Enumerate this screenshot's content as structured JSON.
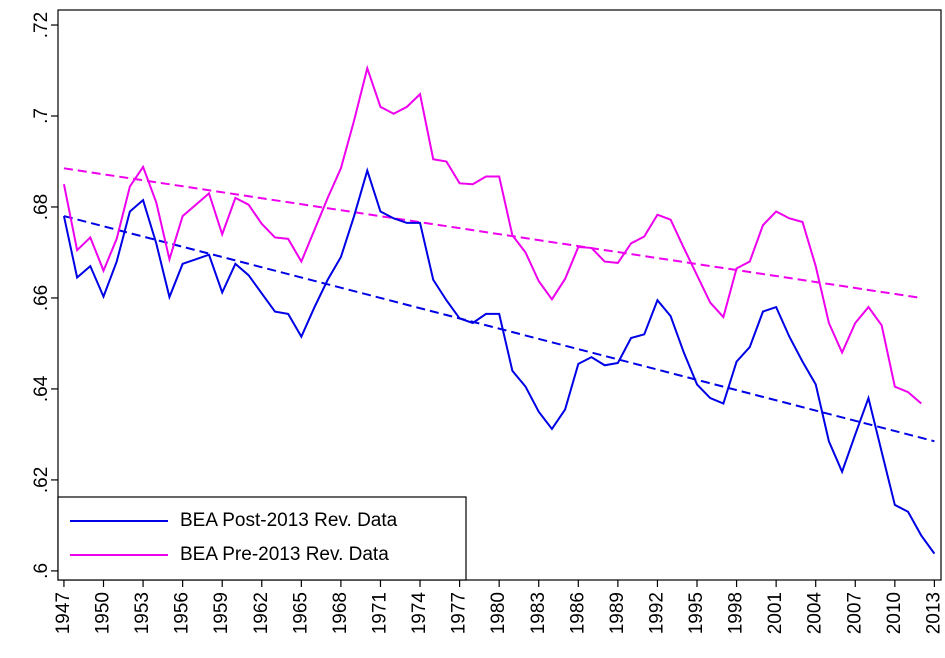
{
  "chart_data": {
    "type": "line",
    "x": [
      1947,
      1948,
      1949,
      1950,
      1951,
      1952,
      1953,
      1954,
      1955,
      1956,
      1957,
      1958,
      1959,
      1960,
      1961,
      1962,
      1963,
      1964,
      1965,
      1966,
      1967,
      1968,
      1969,
      1970,
      1971,
      1972,
      1973,
      1974,
      1975,
      1976,
      1977,
      1978,
      1979,
      1980,
      1981,
      1982,
      1983,
      1984,
      1985,
      1986,
      1987,
      1988,
      1989,
      1990,
      1991,
      1992,
      1993,
      1994,
      1995,
      1996,
      1997,
      1998,
      1999,
      2000,
      2001,
      2002,
      2003,
      2004,
      2005,
      2006,
      2007,
      2008,
      2009,
      2010,
      2011,
      2012,
      2013
    ],
    "series": [
      {
        "name": "BEA Post-2013 Rev. Data",
        "color": "#0000e6",
        "values": [
          0.678,
          0.6645,
          0.667,
          0.6603,
          0.668,
          0.679,
          0.6815,
          0.672,
          0.6602,
          0.6675,
          0.6685,
          0.6695,
          0.6612,
          0.6675,
          0.665,
          0.661,
          0.657,
          0.6565,
          0.6515,
          0.658,
          0.664,
          0.669,
          0.678,
          0.688,
          0.679,
          0.6775,
          0.6765,
          0.6765,
          0.664,
          0.6595,
          0.6555,
          0.6545,
          0.6565,
          0.6565,
          0.644,
          0.6405,
          0.635,
          0.6312,
          0.6355,
          0.6455,
          0.647,
          0.6452,
          0.6457,
          0.6512,
          0.652,
          0.6595,
          0.656,
          0.648,
          0.641,
          0.638,
          0.6368,
          0.646,
          0.6492,
          0.657,
          0.658,
          0.6515,
          0.646,
          0.641,
          0.6285,
          0.6218,
          0.63,
          0.638,
          0.6262,
          0.6145,
          0.613,
          0.6078,
          0.6038
        ]
      },
      {
        "name": "BEA Pre-2013 Rev. Data",
        "color": "#ee00ee",
        "values": [
          0.685,
          0.6705,
          0.6733,
          0.666,
          0.673,
          0.6845,
          0.6888,
          0.681,
          0.6685,
          0.678,
          0.6805,
          0.683,
          0.674,
          0.682,
          0.6805,
          0.6763,
          0.6733,
          0.673,
          0.668,
          0.675,
          0.682,
          0.6885,
          0.699,
          0.7105,
          0.702,
          0.7005,
          0.702,
          0.7048,
          0.6905,
          0.69,
          0.6852,
          0.685,
          0.6867,
          0.6867,
          0.6738,
          0.67,
          0.6637,
          0.6597,
          0.6642,
          0.6712,
          0.671,
          0.668,
          0.6677,
          0.672,
          0.6735,
          0.6783,
          0.6772,
          0.671,
          0.665,
          0.659,
          0.6558,
          0.6665,
          0.668,
          0.676,
          0.679,
          0.6775,
          0.6767,
          0.667,
          0.6545,
          0.648,
          0.6545,
          0.658,
          0.654,
          0.6405,
          0.6393,
          0.6368,
          null
        ]
      }
    ],
    "trend_lines": [
      {
        "color": "#0000e6",
        "dashed": true,
        "x": [
          1947,
          2013
        ],
        "values": [
          0.678,
          0.6285
        ]
      },
      {
        "color": "#ee00ee",
        "dashed": true,
        "x": [
          1947,
          2012
        ],
        "values": [
          0.6885,
          0.66
        ]
      }
    ],
    "xlim": [
      1946.55,
      2013.5
    ],
    "ylim": [
      0.598,
      0.7233
    ],
    "xticks": [
      1947,
      1950,
      1953,
      1956,
      1959,
      1962,
      1965,
      1968,
      1971,
      1974,
      1977,
      1980,
      1983,
      1986,
      1989,
      1992,
      1995,
      1998,
      2001,
      2004,
      2007,
      2010,
      2013
    ],
    "yticks": [
      {
        "value": 0.6,
        "label": ".6"
      },
      {
        "value": 0.62,
        "label": ".62"
      },
      {
        "value": 0.64,
        "label": ".64"
      },
      {
        "value": 0.66,
        "label": ".66"
      },
      {
        "value": 0.68,
        "label": ".68"
      },
      {
        "value": 0.7,
        "label": ".7"
      },
      {
        "value": 0.72,
        "label": ".72"
      }
    ],
    "legend": "lower left"
  }
}
